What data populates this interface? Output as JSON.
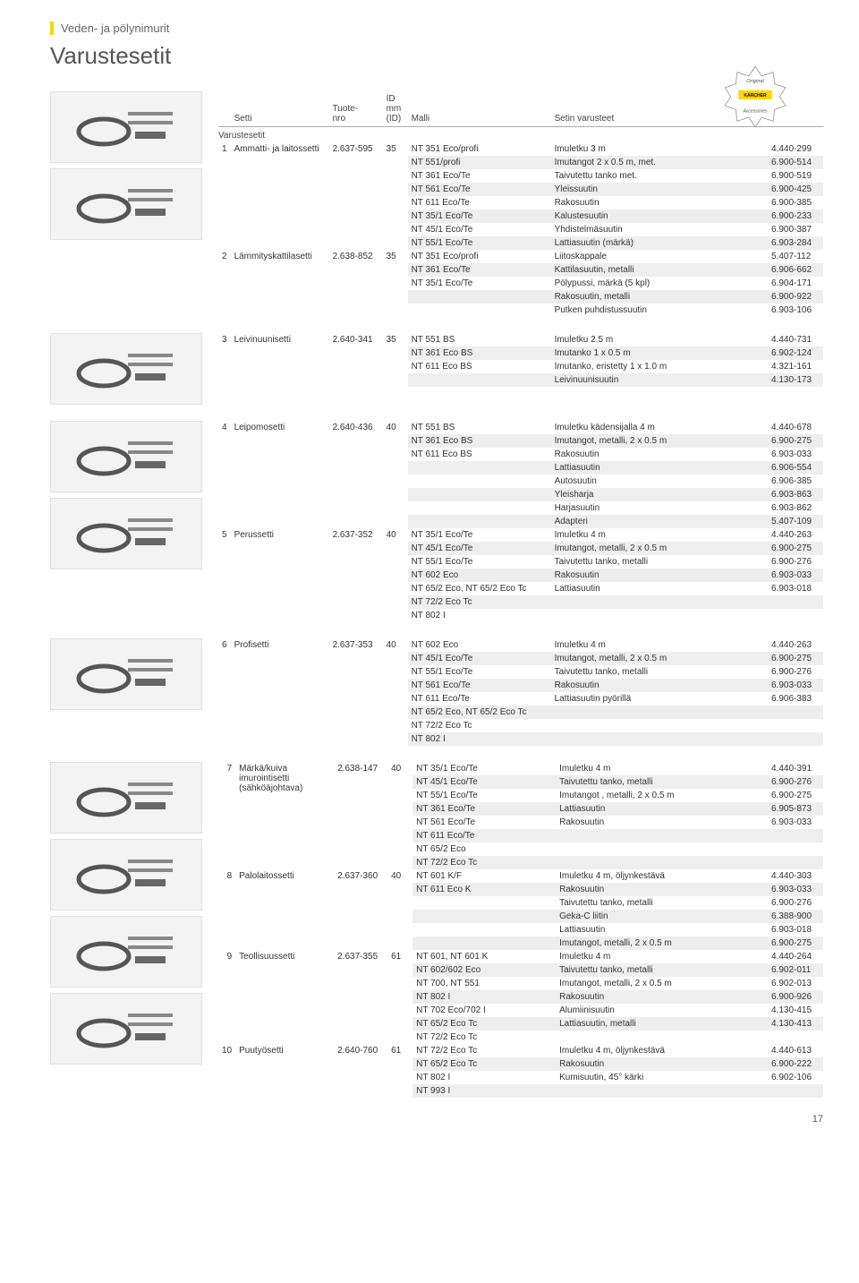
{
  "page": {
    "breadcrumb": "Veden- ja pölynimurit",
    "title": "Varustesetit",
    "page_number": "17",
    "badge_top": "Original",
    "badge_brand": "KÄRCHER",
    "badge_bottom": "Accessories"
  },
  "columns": {
    "setti": "Setti",
    "tuotenro": "Tuote-\nnro",
    "id": "ID\nmm\n(ID)",
    "malli": "Malli",
    "varusteet": "Setin varusteet"
  },
  "group_label": "Varustesetit",
  "sections": [
    {
      "rows": [
        {
          "idx": "1",
          "set": "Ammatti- ja laitossetti",
          "nro": "2.637-595",
          "id": "35",
          "items": [
            {
              "m": "NT 351 Eco/profi",
              "v": "Imuletku 3 m",
              "c": "4.440-299"
            },
            {
              "m": "NT 551/profi",
              "v": "Imutangot 2 x 0.5 m, met.",
              "c": "6.900-514"
            },
            {
              "m": "NT 361 Eco/Te",
              "v": "Taivutettu tanko met.",
              "c": "6.900-519"
            },
            {
              "m": "NT 561 Eco/Te",
              "v": "Yleissuutin",
              "c": "6.900-425"
            },
            {
              "m": "NT 611 Eco/Te",
              "v": "Rakosuutin",
              "c": "6.900-385"
            },
            {
              "m": "NT 35/1 Eco/Te",
              "v": "Kalustesuutin",
              "c": "6.900-233"
            },
            {
              "m": "NT 45/1 Eco/Te",
              "v": "Yhdistelmäsuutin",
              "c": "6.900-387"
            },
            {
              "m": "NT 55/1 Eco/Te",
              "v": "Lattiasuutin (märkä)",
              "c": "6.903-284"
            }
          ]
        },
        {
          "idx": "2",
          "set": "Lämmityskattilasetti",
          "nro": "2.638-852",
          "id": "35",
          "items": [
            {
              "m": "NT 351 Eco/profi",
              "v": "Liitoskappale",
              "c": "5.407-112"
            },
            {
              "m": "NT 361 Eco/Te",
              "v": "Kattilasuutin, metalli",
              "c": "6.906-662"
            },
            {
              "m": "NT 35/1 Eco/Te",
              "v": "Pölypussi, märkä (5 kpl)",
              "c": "6.904-171"
            },
            {
              "m": "",
              "v": "Rakosuutin, metalli",
              "c": "6.900-922"
            },
            {
              "m": "",
              "v": "Putken puhdistussuutin",
              "c": "6.903-106"
            }
          ]
        }
      ]
    },
    {
      "rows": [
        {
          "idx": "3",
          "set": "Leivinuunisetti",
          "nro": "2.640-341",
          "id": "35",
          "items": [
            {
              "m": "NT 551 BS",
              "v": "Imuletku 2.5 m",
              "c": "4.440-731"
            },
            {
              "m": "NT 361 Eco BS",
              "v": "Imutanko 1 x 0.5 m",
              "c": "6.902-124"
            },
            {
              "m": "NT 611 Eco BS",
              "v": "Imutanko, eristetty 1 x 1.0 m",
              "c": "4.321-161"
            },
            {
              "m": "",
              "v": "Leivinuunisuutin",
              "c": "4.130-173"
            }
          ]
        }
      ]
    },
    {
      "rows": [
        {
          "idx": "4",
          "set": "Leipomosetti",
          "nro": "2.640-436",
          "id": "40",
          "items": [
            {
              "m": "NT 551 BS",
              "v": "Imuletku kädensijalla 4 m",
              "c": "4.440-678"
            },
            {
              "m": "NT 361 Eco BS",
              "v": "Imutangot, metalli, 2 x 0.5 m",
              "c": "6.900-275"
            },
            {
              "m": "NT 611 Eco BS",
              "v": "Rakosuutin",
              "c": "6.903-033"
            },
            {
              "m": "",
              "v": "Lattiasuutin",
              "c": "6.906-554"
            },
            {
              "m": "",
              "v": "Autosuutin",
              "c": "6.906-385"
            },
            {
              "m": "",
              "v": "Yleisharja",
              "c": "6.903-863"
            },
            {
              "m": "",
              "v": "Harjasuutin",
              "c": "6.903-862"
            },
            {
              "m": "",
              "v": "Adapteri",
              "c": "5.407-109"
            }
          ]
        },
        {
          "idx": "5",
          "set": "Perussetti",
          "nro": "2.637-352",
          "id": "40",
          "items": [
            {
              "m": "NT 35/1 Eco/Te",
              "v": "Imuletku 4 m",
              "c": "4.440-263"
            },
            {
              "m": "NT 45/1 Eco/Te",
              "v": "Imutangot, metalli, 2 x 0.5 m",
              "c": "6.900-275"
            },
            {
              "m": "NT 55/1 Eco/Te",
              "v": "Taivutettu tanko, metalli",
              "c": "6.900-276"
            },
            {
              "m": "NT 602 Eco",
              "v": "Rakosuutin",
              "c": "6.903-033"
            },
            {
              "m": "NT 65/2 Eco, NT 65/2 Eco Tc",
              "v": "Lattiasuutin",
              "c": "6.903-018"
            },
            {
              "m": "NT 72/2 Eco Tc",
              "v": "",
              "c": ""
            },
            {
              "m": "NT 802 I",
              "v": "",
              "c": ""
            }
          ]
        }
      ]
    },
    {
      "rows": [
        {
          "idx": "6",
          "set": "Profisetti",
          "nro": "2.637-353",
          "id": "40",
          "items": [
            {
              "m": "NT 602 Eco",
              "v": "Imuletku 4 m",
              "c": "4.440-263"
            },
            {
              "m": "NT 45/1 Eco/Te",
              "v": "Imutangot, metalli, 2 x 0.5 m",
              "c": "6.900-275"
            },
            {
              "m": "NT 55/1 Eco/Te",
              "v": "Taivutettu tanko, metalli",
              "c": "6.900-276"
            },
            {
              "m": "NT 561 Eco/Te",
              "v": "Rakosuutin",
              "c": "6.903-033"
            },
            {
              "m": "NT 611 Eco/Te",
              "v": "Lattiasuutin pyörillä",
              "c": "6.906-383"
            },
            {
              "m": "NT 65/2 Eco, NT 65/2 Eco Tc",
              "v": "",
              "c": ""
            },
            {
              "m": "NT 72/2 Eco Tc",
              "v": "",
              "c": ""
            },
            {
              "m": "NT 802 I",
              "v": "",
              "c": ""
            }
          ]
        }
      ]
    },
    {
      "rows": [
        {
          "idx": "7",
          "set": "Märkä/kuiva imurointisetti (sähköäjohtava)",
          "nro": "2.638-147",
          "id": "40",
          "items": [
            {
              "m": "NT 35/1 Eco/Te",
              "v": "Imuletku 4 m",
              "c": "4.440-391"
            },
            {
              "m": "NT 45/1 Eco/Te",
              "v": "Taivutettu tanko, metalli",
              "c": "6.900-276"
            },
            {
              "m": "NT 55/1 Eco/Te",
              "v": "Imutangot , metalli, 2 x 0.5 m",
              "c": "6.900-275"
            },
            {
              "m": "NT 361 Eco/Te",
              "v": "Lattiasuutin",
              "c": "6.905-873"
            },
            {
              "m": "NT 561 Eco/Te",
              "v": "Rakosuutin",
              "c": "6.903-033"
            },
            {
              "m": "NT 611 Eco/Te",
              "v": "",
              "c": ""
            },
            {
              "m": "NT 65/2 Eco",
              "v": "",
              "c": ""
            },
            {
              "m": "NT 72/2 Eco Tc",
              "v": "",
              "c": ""
            }
          ]
        },
        {
          "idx": "8",
          "set": "Palolaitossetti",
          "nro": "2.637-360",
          "id": "40",
          "items": [
            {
              "m": "NT 601 K/F",
              "v": "Imuletku 4 m, öljynkestävä",
              "c": "4.440-303"
            },
            {
              "m": "NT 611 Eco K",
              "v": "Rakosuutin",
              "c": "6.903-033"
            },
            {
              "m": "",
              "v": "Taivutettu tanko, metalli",
              "c": "6.900-276"
            },
            {
              "m": "",
              "v": "Geka-C liitin",
              "c": "6.388-900"
            },
            {
              "m": "",
              "v": "Lattiasuutin",
              "c": "6.903-018"
            },
            {
              "m": "",
              "v": "Imutangot, metalli, 2 x 0.5 m",
              "c": "6.900-275"
            }
          ]
        },
        {
          "idx": "9",
          "set": "Teollisuussetti",
          "nro": "2.637-355",
          "id": "61",
          "items": [
            {
              "m": "NT 601, NT 601 K",
              "v": "Imuletku 4 m",
              "c": "4.440-264"
            },
            {
              "m": "NT 602/602 Eco",
              "v": "Taivutettu tanko, metalli",
              "c": "6.902-011"
            },
            {
              "m": "NT 700, NT 551",
              "v": "Imutangot, metalli, 2 x 0.5 m",
              "c": "6.902-013"
            },
            {
              "m": "NT 802 I",
              "v": "Rakosuutin",
              "c": "6.900-926"
            },
            {
              "m": "NT 702 Eco/702 I",
              "v": "Alumiinisuutin",
              "c": "4.130-415"
            },
            {
              "m": "NT 65/2 Eco Tc",
              "v": "Lattiasuutin, metalli",
              "c": "4.130-413"
            },
            {
              "m": "NT 72/2 Eco Tc",
              "v": "",
              "c": ""
            }
          ]
        },
        {
          "idx": "10",
          "set": "Puutyösetti",
          "nro": "2.640-760",
          "id": "61",
          "items": [
            {
              "m": "NT 72/2 Eco Tc",
              "v": "Imuletku 4 m, öljynkestävä",
              "c": "4.440-613"
            },
            {
              "m": "NT 65/2 Eco Tc",
              "v": "Rakosuutin",
              "c": "6.900-222"
            },
            {
              "m": "NT 802 I",
              "v": "Kumisuutin, 45° kärki",
              "c": "6.902-106"
            },
            {
              "m": "NT 993 I",
              "v": "",
              "c": ""
            }
          ]
        }
      ]
    }
  ]
}
